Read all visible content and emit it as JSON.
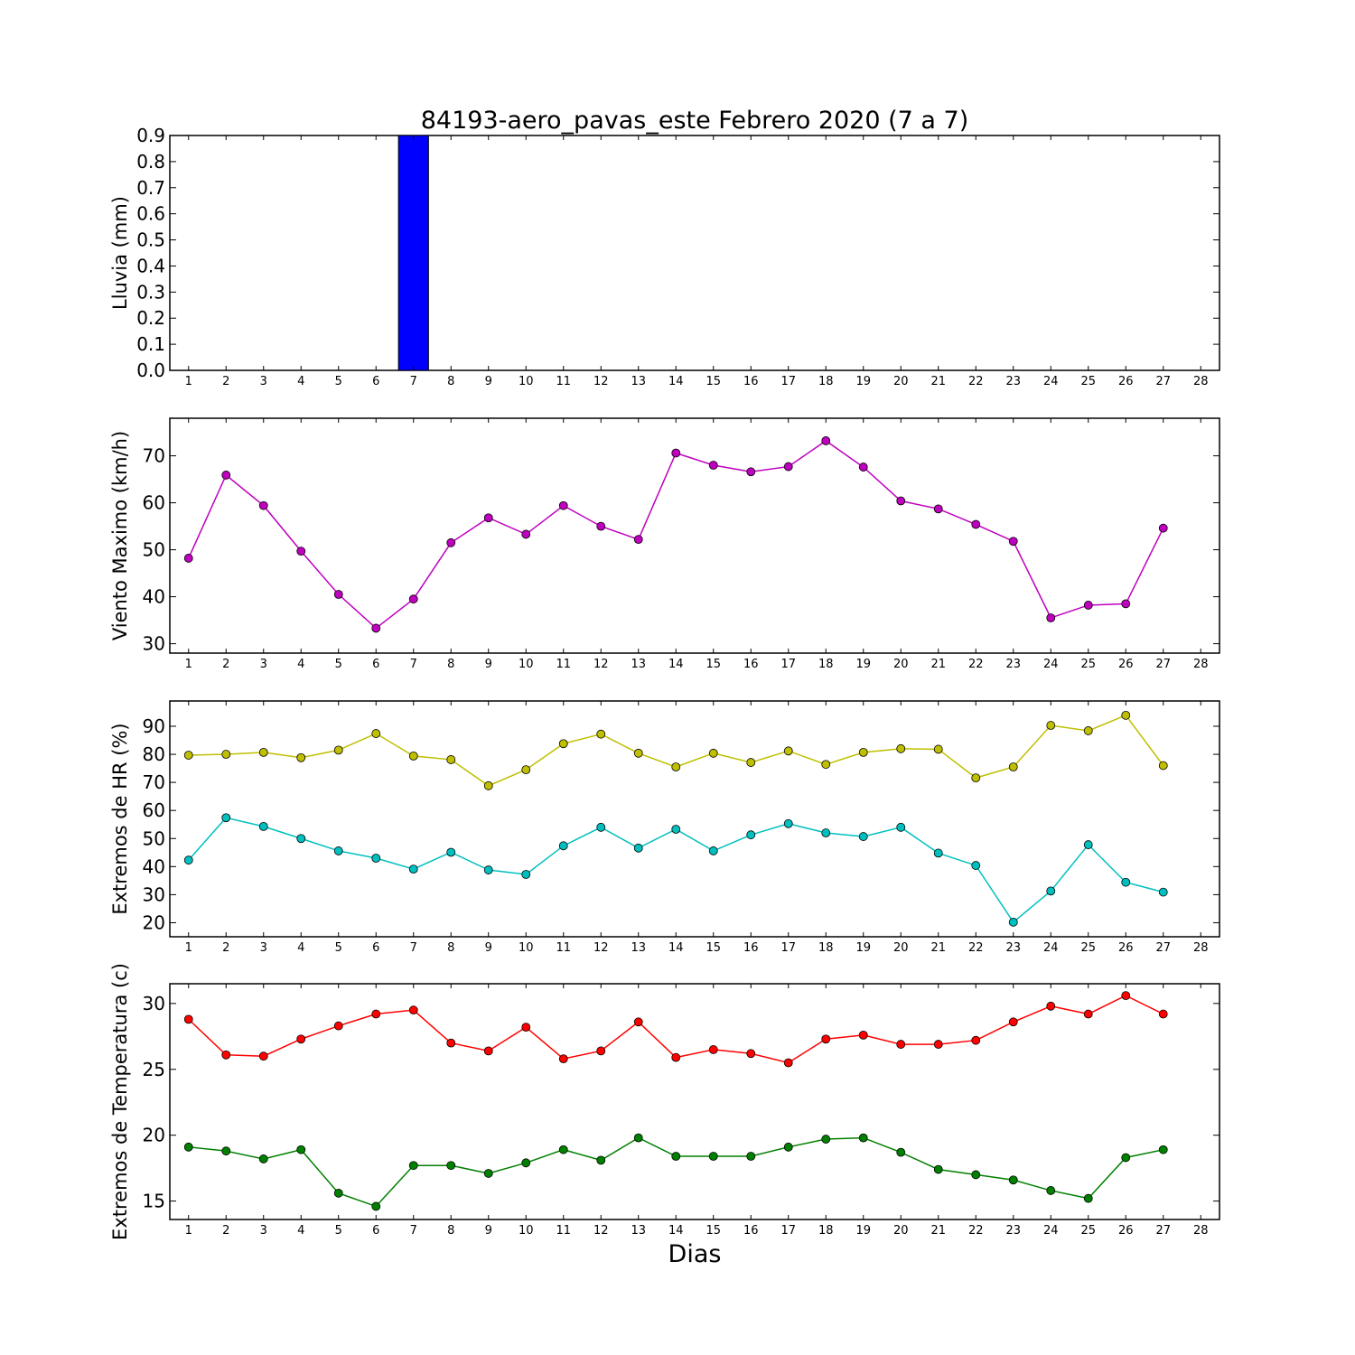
{
  "figure": {
    "title": "84193-aero_pavas_este Febrero 2020  (7 a 7)",
    "xlabel": "Dias"
  },
  "chart_data": [
    {
      "type": "bar",
      "ylabel": "Lluvia (mm)",
      "x": [
        1,
        2,
        3,
        4,
        5,
        6,
        7,
        8,
        9,
        10,
        11,
        12,
        13,
        14,
        15,
        16,
        17,
        18,
        19,
        20,
        21,
        22,
        23,
        24,
        25,
        26,
        27
      ],
      "xticks": [
        1,
        2,
        3,
        4,
        5,
        6,
        7,
        8,
        9,
        10,
        11,
        12,
        13,
        14,
        15,
        16,
        17,
        18,
        19,
        20,
        21,
        22,
        23,
        24,
        25,
        26,
        27,
        28
      ],
      "xlim": [
        0.5,
        28.5
      ],
      "ylim": [
        0,
        0.9
      ],
      "yticks": [
        "0.0",
        "0.1",
        "0.2",
        "0.3",
        "0.4",
        "0.5",
        "0.6",
        "0.7",
        "0.8",
        "0.9"
      ],
      "series": [
        {
          "color": "#0000ff",
          "values": [
            0,
            0,
            0,
            0,
            0,
            0,
            0.9,
            0,
            0,
            0,
            0,
            0,
            0,
            0,
            0,
            0,
            0,
            0,
            0,
            0,
            0,
            0,
            0,
            0,
            0,
            0,
            0
          ]
        }
      ]
    },
    {
      "type": "line",
      "ylabel": "Viento Maximo (km/h)",
      "x": [
        1,
        2,
        3,
        4,
        5,
        6,
        7,
        8,
        9,
        10,
        11,
        12,
        13,
        14,
        15,
        16,
        17,
        18,
        19,
        20,
        21,
        22,
        23,
        24,
        25,
        26,
        27
      ],
      "xticks": [
        1,
        2,
        3,
        4,
        5,
        6,
        7,
        8,
        9,
        10,
        11,
        12,
        13,
        14,
        15,
        16,
        17,
        18,
        19,
        20,
        21,
        22,
        23,
        24,
        25,
        26,
        27,
        28
      ],
      "xlim": [
        0.5,
        28.5
      ],
      "ylim": [
        28,
        78
      ],
      "yticks": [
        "30",
        "40",
        "50",
        "60",
        "70"
      ],
      "series": [
        {
          "color": "#bf00bf",
          "values": [
            48.2,
            65.9,
            59.4,
            49.7,
            40.5,
            33.3,
            39.5,
            51.5,
            56.8,
            53.3,
            59.4,
            55.0,
            52.2,
            70.6,
            68.0,
            66.6,
            67.7,
            73.2,
            67.6,
            60.4,
            58.7,
            55.4,
            51.8,
            35.5,
            38.2,
            38.5,
            54.6
          ]
        }
      ]
    },
    {
      "type": "line",
      "ylabel": "Extremos de HR (%)",
      "x": [
        1,
        2,
        3,
        4,
        5,
        6,
        7,
        8,
        9,
        10,
        11,
        12,
        13,
        14,
        15,
        16,
        17,
        18,
        19,
        20,
        21,
        22,
        23,
        24,
        25,
        26,
        27
      ],
      "xticks": [
        1,
        2,
        3,
        4,
        5,
        6,
        7,
        8,
        9,
        10,
        11,
        12,
        13,
        14,
        15,
        16,
        17,
        18,
        19,
        20,
        21,
        22,
        23,
        24,
        25,
        26,
        27,
        28
      ],
      "xlim": [
        0.5,
        28.5
      ],
      "ylim": [
        15,
        99
      ],
      "yticks": [
        "20",
        "30",
        "40",
        "50",
        "60",
        "70",
        "80",
        "90"
      ],
      "series": [
        {
          "color": "#bfbf00",
          "values": [
            79.7,
            80.0,
            80.7,
            78.8,
            81.5,
            87.4,
            79.4,
            78.1,
            68.8,
            74.5,
            83.8,
            87.2,
            80.4,
            75.5,
            80.4,
            77.1,
            81.2,
            76.4,
            80.7,
            82.0,
            81.8,
            71.6,
            75.5,
            90.3,
            88.4,
            93.9,
            76.0
          ]
        },
        {
          "color": "#00bfbf",
          "values": [
            42.3,
            57.4,
            54.3,
            50.0,
            45.6,
            43.0,
            39.1,
            45.1,
            38.8,
            37.2,
            47.4,
            54.0,
            46.6,
            53.3,
            45.6,
            51.3,
            55.3,
            52.0,
            50.7,
            54.0,
            44.8,
            40.4,
            20.2,
            31.3,
            47.8,
            34.4,
            30.9
          ]
        }
      ]
    },
    {
      "type": "line",
      "ylabel": "Extremos de Temperatura (c)",
      "x": [
        1,
        2,
        3,
        4,
        5,
        6,
        7,
        8,
        9,
        10,
        11,
        12,
        13,
        14,
        15,
        16,
        17,
        18,
        19,
        20,
        21,
        22,
        23,
        24,
        25,
        26,
        27
      ],
      "xticks": [
        1,
        2,
        3,
        4,
        5,
        6,
        7,
        8,
        9,
        10,
        11,
        12,
        13,
        14,
        15,
        16,
        17,
        18,
        19,
        20,
        21,
        22,
        23,
        24,
        25,
        26,
        27,
        28
      ],
      "xlim": [
        0.5,
        28.5
      ],
      "ylim": [
        13.6,
        31.5
      ],
      "yticks": [
        "15",
        "20",
        "25",
        "30"
      ],
      "series": [
        {
          "color": "#ff0000",
          "values": [
            28.8,
            26.1,
            26.0,
            27.3,
            28.3,
            29.2,
            29.5,
            27.0,
            26.4,
            28.2,
            25.8,
            26.4,
            28.6,
            25.9,
            26.5,
            26.2,
            25.5,
            27.3,
            27.6,
            26.9,
            26.9,
            27.2,
            28.6,
            29.8,
            29.2,
            30.6,
            29.2
          ]
        },
        {
          "color": "#008000",
          "values": [
            19.1,
            18.8,
            18.2,
            18.9,
            15.6,
            14.6,
            17.7,
            17.7,
            17.1,
            17.9,
            18.9,
            18.1,
            19.8,
            18.4,
            18.4,
            18.4,
            19.1,
            19.7,
            19.8,
            18.7,
            17.4,
            17.0,
            16.6,
            15.8,
            15.2,
            18.3,
            18.9
          ]
        }
      ]
    }
  ]
}
